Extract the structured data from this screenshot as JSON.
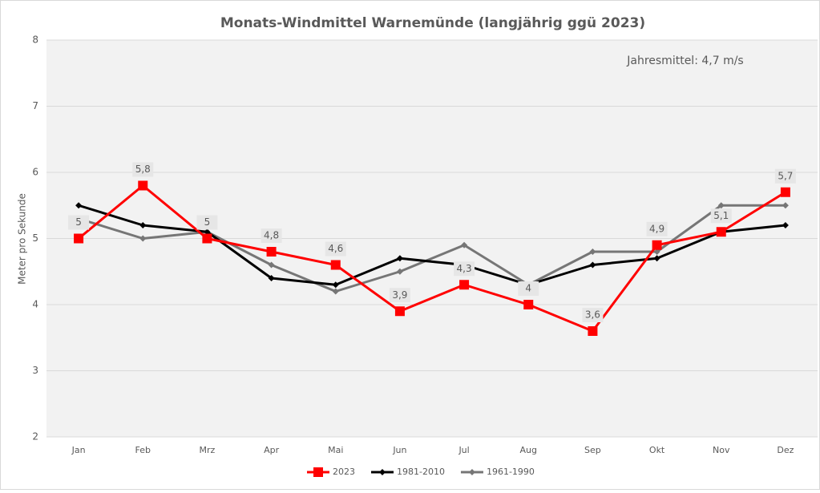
{
  "chart_data": {
    "type": "line",
    "title": "Monats-Windmittel Warnemünde (langjährig ggü 2023)",
    "y_label": "Meter pro Sekunde",
    "annotation": "Jahresmittel: 4,7 m/s",
    "categories": [
      "Jan",
      "Feb",
      "Mrz",
      "Apr",
      "Mai",
      "Jun",
      "Jul",
      "Aug",
      "Sep",
      "Okt",
      "Nov",
      "Dez"
    ],
    "series": [
      {
        "name": "2023",
        "color": "#ff0000",
        "marker": "square",
        "values": [
          5,
          5.8,
          5,
          4.8,
          4.6,
          3.9,
          4.3,
          4,
          3.6,
          4.9,
          5.1,
          5.7
        ],
        "value_labels": [
          "5",
          "5,8",
          "5",
          "4,8",
          "4,6",
          "3,9",
          "4,3",
          "4",
          "3,6",
          "4,9",
          "5,1",
          "5,7"
        ]
      },
      {
        "name": "1981-2010",
        "color": "#000000",
        "marker": "diamond",
        "values": [
          5.5,
          5.2,
          5.1,
          4.4,
          4.3,
          4.7,
          4.6,
          4.3,
          4.6,
          4.7,
          5.1,
          5.2
        ]
      },
      {
        "name": "1961-1990",
        "color": "#767676",
        "marker": "diamond",
        "values": [
          5.3,
          5.0,
          5.1,
          4.6,
          4.2,
          4.5,
          4.9,
          4.3,
          4.8,
          4.8,
          5.5,
          5.5
        ]
      }
    ],
    "ylim": [
      2,
      8
    ],
    "yticks": [
      2,
      3,
      4,
      5,
      6,
      7,
      8
    ],
    "grid": true,
    "legend": "bottom"
  }
}
